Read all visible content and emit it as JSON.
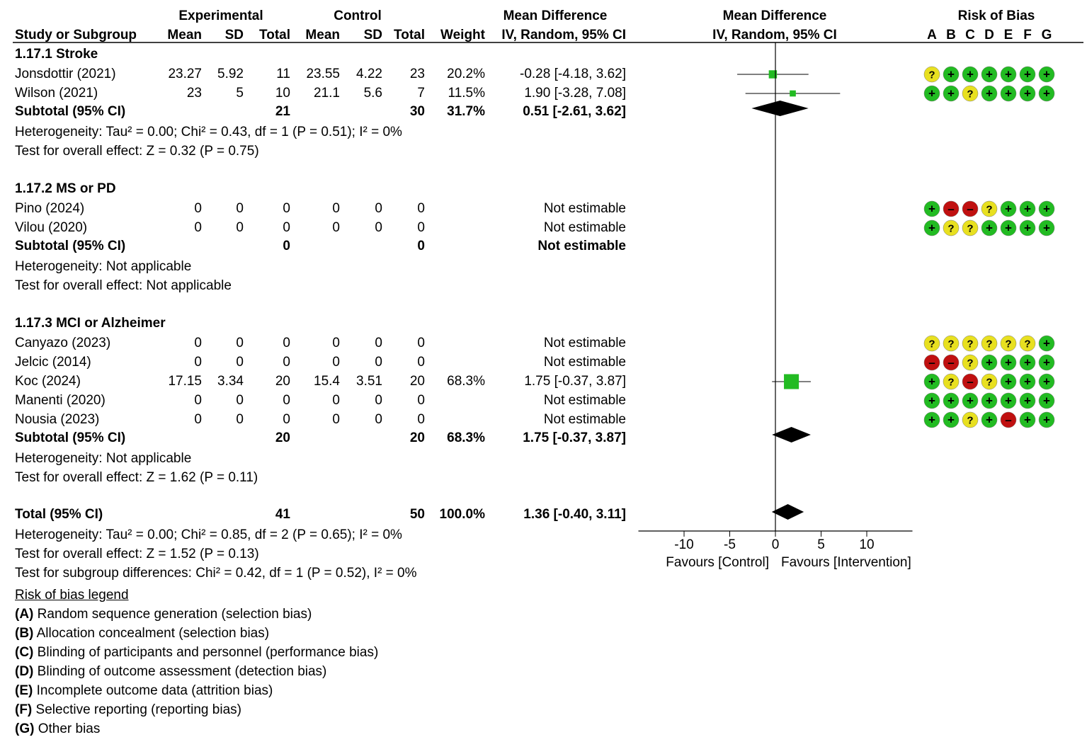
{
  "headers": {
    "group_experimental": "Experimental",
    "group_control": "Control",
    "mean_difference": "Mean Difference",
    "mean_difference_plot": "Mean Difference",
    "risk_of_bias": "Risk of Bias",
    "study": "Study or Subgroup",
    "mean": "Mean",
    "sd": "SD",
    "total": "Total",
    "weight": "Weight",
    "method": "IV, Random, 95% CI",
    "method_plot": "IV, Random, 95% CI",
    "rob_letters": [
      "A",
      "B",
      "C",
      "D",
      "E",
      "F",
      "G"
    ]
  },
  "colors": {
    "low": "#22bb22",
    "unclear": "#e8e020",
    "high": "#c01010",
    "study_square": "#22bb22",
    "diamond": "#000000"
  },
  "chart_data": {
    "type": "forest",
    "xlim": [
      -15,
      15
    ],
    "ticks": [
      -10,
      -5,
      0,
      5,
      10
    ],
    "xlabel_left": "Favours [Control]",
    "xlabel_right": "Favours [Intervention]",
    "subgroups": [
      {
        "title": "1.17.1 Stroke",
        "studies": [
          {
            "name": "Jonsdottir (2021)",
            "e_mean": "23.27",
            "e_sd": "5.92",
            "e_total": "11",
            "c_mean": "23.55",
            "c_sd": "4.22",
            "c_total": "23",
            "weight": "20.2%",
            "ci_text": "-0.28 [-4.18, 3.62]",
            "md": -0.28,
            "lo": -4.18,
            "hi": 3.62,
            "w": 20.2,
            "rob": [
              "?",
              "+",
              "+",
              "+",
              "+",
              "+",
              "+"
            ]
          },
          {
            "name": "Wilson (2021)",
            "e_mean": "23",
            "e_sd": "5",
            "e_total": "10",
            "c_mean": "21.1",
            "c_sd": "5.6",
            "c_total": "7",
            "weight": "11.5%",
            "ci_text": "1.90 [-3.28, 7.08]",
            "md": 1.9,
            "lo": -3.28,
            "hi": 7.08,
            "w": 11.5,
            "rob": [
              "+",
              "+",
              "?",
              "+",
              "+",
              "+",
              "+"
            ]
          }
        ],
        "subtotal": {
          "label": "Subtotal (95% CI)",
          "e_total": "21",
          "c_total": "30",
          "weight": "31.7%",
          "ci_text": "0.51 [-2.61, 3.62]",
          "md": 0.51,
          "lo": -2.61,
          "hi": 3.62
        },
        "heterogeneity": "Heterogeneity: Tau² = 0.00; Chi² = 0.43, df = 1 (P = 0.51); I² = 0%",
        "overall": "Test for overall effect: Z = 0.32 (P = 0.75)"
      },
      {
        "title": "1.17.2 MS or PD",
        "studies": [
          {
            "name": "Pino (2024)",
            "e_mean": "0",
            "e_sd": "0",
            "e_total": "0",
            "c_mean": "0",
            "c_sd": "0",
            "c_total": "0",
            "weight": "",
            "ci_text": "Not estimable",
            "md": null,
            "lo": null,
            "hi": null,
            "w": 0,
            "rob": [
              "+",
              "-",
              "-",
              "?",
              "+",
              "+",
              "+"
            ]
          },
          {
            "name": "Vilou (2020)",
            "e_mean": "0",
            "e_sd": "0",
            "e_total": "0",
            "c_mean": "0",
            "c_sd": "0",
            "c_total": "0",
            "weight": "",
            "ci_text": "Not estimable",
            "md": null,
            "lo": null,
            "hi": null,
            "w": 0,
            "rob": [
              "+",
              "?",
              "?",
              "+",
              "+",
              "+",
              "+"
            ]
          }
        ],
        "subtotal": {
          "label": "Subtotal (95% CI)",
          "e_total": "0",
          "c_total": "0",
          "weight": "",
          "ci_text": "Not estimable",
          "md": null,
          "lo": null,
          "hi": null
        },
        "heterogeneity": "Heterogeneity: Not applicable",
        "overall": "Test for overall effect: Not applicable"
      },
      {
        "title": "1.17.3 MCI or Alzheimer",
        "studies": [
          {
            "name": "Canyazo (2023)",
            "e_mean": "0",
            "e_sd": "0",
            "e_total": "0",
            "c_mean": "0",
            "c_sd": "0",
            "c_total": "0",
            "weight": "",
            "ci_text": "Not estimable",
            "md": null,
            "lo": null,
            "hi": null,
            "w": 0,
            "rob": [
              "?",
              "?",
              "?",
              "?",
              "?",
              "?",
              "+"
            ]
          },
          {
            "name": "Jelcic (2014)",
            "e_mean": "0",
            "e_sd": "0",
            "e_total": "0",
            "c_mean": "0",
            "c_sd": "0",
            "c_total": "0",
            "weight": "",
            "ci_text": "Not estimable",
            "md": null,
            "lo": null,
            "hi": null,
            "w": 0,
            "rob": [
              "-",
              "-",
              "?",
              "+",
              "+",
              "+",
              "+"
            ]
          },
          {
            "name": "Koc (2024)",
            "e_mean": "17.15",
            "e_sd": "3.34",
            "e_total": "20",
            "c_mean": "15.4",
            "c_sd": "3.51",
            "c_total": "20",
            "weight": "68.3%",
            "ci_text": "1.75 [-0.37, 3.87]",
            "md": 1.75,
            "lo": -0.37,
            "hi": 3.87,
            "w": 68.3,
            "rob": [
              "+",
              "?",
              "-",
              "?",
              "+",
              "+",
              "+"
            ]
          },
          {
            "name": "Manenti (2020)",
            "e_mean": "0",
            "e_sd": "0",
            "e_total": "0",
            "c_mean": "0",
            "c_sd": "0",
            "c_total": "0",
            "weight": "",
            "ci_text": "Not estimable",
            "md": null,
            "lo": null,
            "hi": null,
            "w": 0,
            "rob": [
              "+",
              "+",
              "+",
              "+",
              "+",
              "+",
              "+"
            ]
          },
          {
            "name": "Nousia (2023)",
            "e_mean": "0",
            "e_sd": "0",
            "e_total": "0",
            "c_mean": "0",
            "c_sd": "0",
            "c_total": "0",
            "weight": "",
            "ci_text": "Not estimable",
            "md": null,
            "lo": null,
            "hi": null,
            "w": 0,
            "rob": [
              "+",
              "+",
              "?",
              "+",
              "-",
              "+",
              "+"
            ]
          }
        ],
        "subtotal": {
          "label": "Subtotal (95% CI)",
          "e_total": "20",
          "c_total": "20",
          "weight": "68.3%",
          "ci_text": "1.75 [-0.37, 3.87]",
          "md": 1.75,
          "lo": -0.37,
          "hi": 3.87
        },
        "heterogeneity": "Heterogeneity: Not applicable",
        "overall": "Test for overall effect: Z = 1.62 (P = 0.11)"
      }
    ],
    "total": {
      "label": "Total (95% CI)",
      "e_total": "41",
      "c_total": "50",
      "weight": "100.0%",
      "ci_text": "1.36 [-0.40, 3.11]",
      "md": 1.36,
      "lo": -0.4,
      "hi": 3.11
    },
    "total_heterogeneity": "Heterogeneity: Tau² = 0.00; Chi² = 0.85, df = 2 (P = 0.65); I² = 0%",
    "total_overall": "Test for overall effect: Z = 1.52 (P = 0.13)",
    "subgroup_differences": "Test for subgroup differences: Chi² = 0.42, df = 1 (P = 0.52), I² = 0%"
  },
  "legend": {
    "title": "Risk of bias legend",
    "items": [
      {
        "letter": "(A)",
        "text": " Random sequence generation (selection bias)"
      },
      {
        "letter": "(B)",
        "text": " Allocation concealment (selection bias)"
      },
      {
        "letter": "(C)",
        "text": " Blinding of participants and personnel (performance bias)"
      },
      {
        "letter": "(D)",
        "text": " Blinding of outcome assessment (detection bias)"
      },
      {
        "letter": "(E)",
        "text": " Incomplete outcome data (attrition bias)"
      },
      {
        "letter": "(F)",
        "text": " Selective reporting (reporting bias)"
      },
      {
        "letter": "(G)",
        "text": " Other bias"
      }
    ]
  }
}
